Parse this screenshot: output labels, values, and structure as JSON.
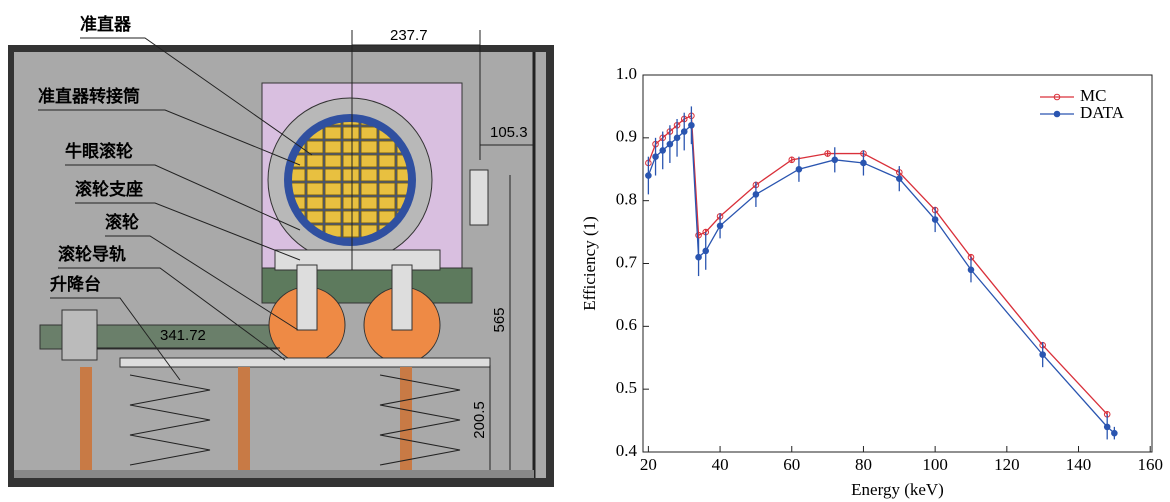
{
  "diagram": {
    "labels": [
      "准直器",
      "准直器转接筒",
      "牛眼滚轮",
      "滚轮支座",
      "滚轮",
      "滚轮导轨",
      "升降台"
    ],
    "dimensions": [
      "237.7",
      "105.3",
      "565",
      "341.72",
      "200.5"
    ]
  },
  "chart_data": {
    "type": "line",
    "x_label": "Energy (keV)",
    "y_label": "Efficiency (1)",
    "xlim": [
      18.5,
      160.5
    ],
    "ylim": [
      0.4,
      1.0
    ],
    "xticks": [
      20,
      40,
      60,
      80,
      100,
      120,
      140,
      160
    ],
    "yticks": [
      0.4,
      0.5,
      0.6,
      0.7,
      0.8,
      0.9,
      {
        "value": 1.0,
        "label": "1.0"
      }
    ],
    "legend": "upper right",
    "series": [
      {
        "name": "MC",
        "color": "#d9303a",
        "x": [
          20,
          22,
          24,
          26,
          28,
          30,
          32,
          34,
          36,
          40,
          50,
          60,
          70,
          80,
          90,
          100,
          110,
          130,
          148
        ],
        "values": [
          0.86,
          0.89,
          0.9,
          0.91,
          0.92,
          0.93,
          0.935,
          0.745,
          0.75,
          0.775,
          0.825,
          0.865,
          0.875,
          0.875,
          0.845,
          0.785,
          0.71,
          0.57,
          0.46
        ],
        "errors": [
          0.005,
          0.005,
          0.005,
          0.005,
          0.005,
          0.005,
          0.005,
          0.005,
          0.005,
          0.005,
          0.005,
          0.005,
          0.005,
          0.005,
          0.005,
          0.005,
          0.005,
          0.005,
          0.005
        ]
      },
      {
        "name": "DATA",
        "color": "#2a55b0",
        "x": [
          20,
          22,
          24,
          26,
          28,
          30,
          32,
          34,
          36,
          40,
          50,
          62,
          72,
          80,
          90,
          100,
          110,
          130,
          148,
          150
        ],
        "values": [
          0.84,
          0.87,
          0.88,
          0.89,
          0.9,
          0.91,
          0.92,
          0.71,
          0.72,
          0.76,
          0.81,
          0.85,
          0.865,
          0.86,
          0.835,
          0.77,
          0.69,
          0.555,
          0.44,
          0.43
        ],
        "errors": [
          0.03,
          0.03,
          0.03,
          0.03,
          0.03,
          0.03,
          0.03,
          0.03,
          0.03,
          0.02,
          0.02,
          0.02,
          0.02,
          0.02,
          0.02,
          0.02,
          0.02,
          0.02,
          0.02,
          0.01
        ]
      }
    ]
  }
}
